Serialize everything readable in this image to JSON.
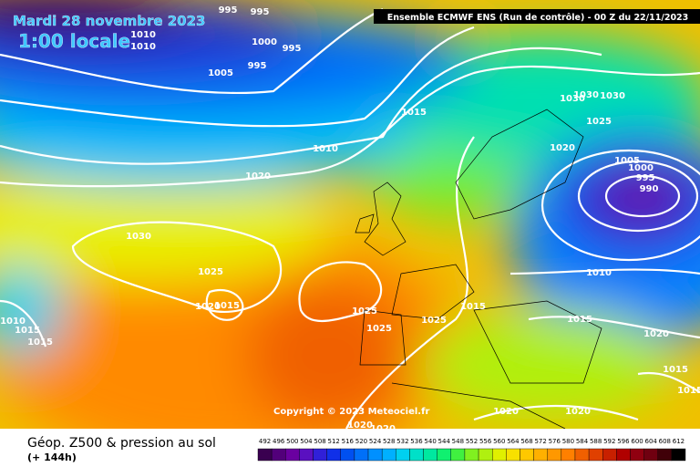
{
  "header": {
    "date": "Mardi 28 novembre 2023",
    "time": "1:00 locale",
    "run": "Ensemble ECMWF ENS  (Run de contrôle)  - 00 Z du 22/11/2023"
  },
  "map": {
    "copyright": "Copyright © 2023 Meteociel.fr",
    "isobar_labels": [
      "995",
      "995",
      "1010",
      "1010",
      "1000",
      "995",
      "1005",
      "995",
      "1015",
      "1010",
      "1020",
      "1030",
      "1030",
      "1030",
      "1025",
      "1020",
      "1005",
      "1000",
      "995",
      "990",
      "1030",
      "1025",
      "1020",
      "1015",
      "1025",
      "1025",
      "1025",
      "1015",
      "1010",
      "1015",
      "1020",
      "1015",
      "1015",
      "1020",
      "1020",
      "1020",
      "1020",
      "1010",
      "1015",
      "1015"
    ]
  },
  "legend": {
    "title": "Géop. Z500 & pression au sol",
    "lead": "(+ 144h)",
    "scale": [
      492,
      496,
      500,
      504,
      508,
      512,
      516,
      520,
      524,
      528,
      532,
      536,
      540,
      544,
      548,
      552,
      556,
      560,
      564,
      568,
      572,
      576,
      580,
      584,
      588,
      592,
      596,
      600,
      604,
      608,
      612
    ],
    "colors": [
      "#3a0050",
      "#52007a",
      "#6a00a0",
      "#5a10c0",
      "#3020d8",
      "#1030e8",
      "#0050f0",
      "#0070f8",
      "#0090ff",
      "#00b0ff",
      "#00d0f0",
      "#00e0c8",
      "#00e8a0",
      "#10f070",
      "#40f040",
      "#80f020",
      "#b0f010",
      "#e0f000",
      "#f8e000",
      "#ffc800",
      "#ffb000",
      "#ff9800",
      "#ff8000",
      "#f06000",
      "#e04000",
      "#c82000",
      "#b00000",
      "#900010",
      "#700010",
      "#400008",
      "#000000"
    ]
  }
}
